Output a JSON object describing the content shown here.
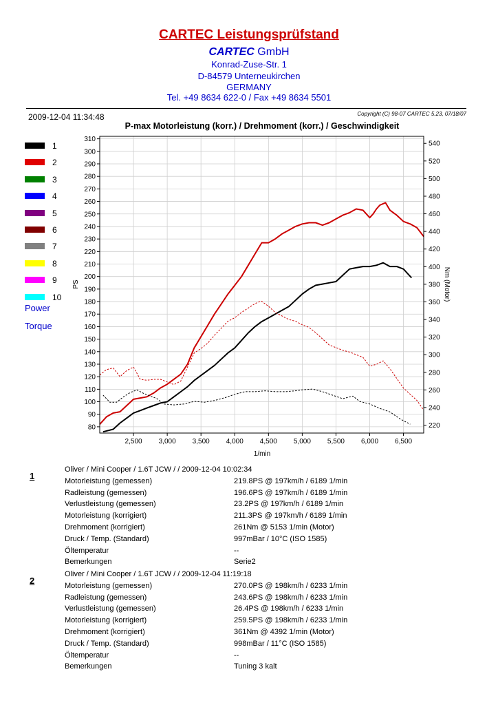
{
  "header": {
    "title": "CARTEC Leistungsprüfstand",
    "company_bold": "CARTEC",
    "company_rest": "GmbH",
    "street": "Konrad-Zuse-Str. 1",
    "city": "D-84579 Unterneukirchen",
    "country": "GERMANY",
    "tel": "Tel. +49 8634  622-0 / Fax +49 8634 5501"
  },
  "meta": {
    "datetime": "2009-12-04 11:34:48",
    "copyright": "Copyright (C) 98-07 CARTEC 5.23, 07/18/07"
  },
  "legend": {
    "items": [
      {
        "label": "1",
        "color": "#000000"
      },
      {
        "label": "2",
        "color": "#e00000"
      },
      {
        "label": "3",
        "color": "#008000"
      },
      {
        "label": "4",
        "color": "#0000ff"
      },
      {
        "label": "5",
        "color": "#800080"
      },
      {
        "label": "6",
        "color": "#800000"
      },
      {
        "label": "7",
        "color": "#808080"
      },
      {
        "label": "8",
        "color": "#ffff00"
      },
      {
        "label": "9",
        "color": "#ff00ff"
      },
      {
        "label": "10",
        "color": "#00ffff"
      }
    ],
    "power_label": "Power",
    "torque_label": "Torque"
  },
  "chart_data": {
    "type": "line",
    "title": "P-max Motorleistung (korr.) / Drehmoment (korr.) / Geschwindigkeit",
    "xlabel": "1/min",
    "ylabel_left": "PS",
    "ylabel_right": "Nm (Motor)",
    "xlim": [
      2000,
      6800
    ],
    "ylim_left": [
      75,
      312
    ],
    "ylim_right": [
      211,
      548
    ],
    "x_ticks": [
      2500,
      3000,
      3500,
      4000,
      4500,
      5000,
      5500,
      6000,
      6500
    ],
    "x_tick_labels": [
      "2,500",
      "3,000",
      "3,500",
      "4,000",
      "4,500",
      "5,000",
      "5,500",
      "6,000",
      "6,500"
    ],
    "y_left_ticks": [
      80,
      90,
      100,
      110,
      120,
      130,
      140,
      150,
      160,
      170,
      180,
      190,
      200,
      210,
      220,
      230,
      240,
      250,
      260,
      270,
      280,
      290,
      300,
      310
    ],
    "y_right_ticks": [
      220,
      240,
      260,
      280,
      300,
      320,
      340,
      360,
      380,
      400,
      420,
      440,
      460,
      480,
      500,
      520,
      540
    ],
    "grid": true,
    "series": [
      {
        "name": "1",
        "kind": "power",
        "axis": "left",
        "color": "#000000",
        "dashed": false,
        "x": [
          2050,
          2200,
          2300,
          2400,
          2500,
          2600,
          2700,
          2800,
          2900,
          3000,
          3100,
          3200,
          3300,
          3400,
          3500,
          3600,
          3700,
          3800,
          3900,
          4000,
          4100,
          4200,
          4300,
          4400,
          4500,
          4600,
          4700,
          4800,
          4900,
          5000,
          5100,
          5200,
          5300,
          5400,
          5500,
          5600,
          5700,
          5800,
          5900,
          6000,
          6100,
          6200,
          6300,
          6400,
          6500,
          6620
        ],
        "y": [
          76,
          78,
          83,
          87,
          91,
          93,
          95,
          97,
          99,
          100,
          104,
          108,
          112,
          117,
          121,
          125,
          129,
          134,
          139,
          143,
          149,
          155,
          160,
          164,
          167,
          170,
          173,
          176,
          181,
          186,
          190,
          193,
          194,
          195,
          196,
          201,
          206,
          207,
          208,
          208,
          209,
          211,
          208,
          208,
          206,
          199
        ]
      },
      {
        "name": "2",
        "kind": "power",
        "axis": "left",
        "color": "#cc0000",
        "dashed": false,
        "x": [
          2000,
          2100,
          2200,
          2300,
          2400,
          2500,
          2600,
          2700,
          2800,
          2900,
          3000,
          3100,
          3200,
          3300,
          3400,
          3500,
          3600,
          3700,
          3800,
          3900,
          4000,
          4100,
          4200,
          4300,
          4400,
          4500,
          4600,
          4700,
          4800,
          4900,
          5000,
          5100,
          5200,
          5300,
          5400,
          5500,
          5600,
          5700,
          5800,
          5900,
          6000,
          6050,
          6100,
          6150,
          6233,
          6300,
          6400,
          6500,
          6600,
          6700,
          6800
        ],
        "y": [
          82,
          88,
          91,
          92,
          97,
          102,
          103,
          104,
          107,
          111,
          114,
          118,
          122,
          130,
          143,
          152,
          161,
          170,
          178,
          186,
          193,
          200,
          209,
          218,
          227,
          227,
          230,
          234,
          237,
          240,
          242,
          243,
          243,
          241,
          243,
          246,
          249,
          251,
          254,
          253,
          247,
          250,
          254,
          257,
          259,
          253,
          249,
          244,
          242,
          239,
          232
        ]
      },
      {
        "name": "1",
        "kind": "torque",
        "axis": "right",
        "color": "#000000",
        "dashed": true,
        "x": [
          2050,
          2150,
          2250,
          2350,
          2450,
          2550,
          2650,
          2750,
          2850,
          2950,
          3100,
          3250,
          3400,
          3550,
          3700,
          3850,
          4000,
          4150,
          4300,
          4450,
          4600,
          4750,
          4900,
          5000,
          5153,
          5300,
          5450,
          5600,
          5750,
          5850,
          6000,
          6150,
          6300,
          6450,
          6600
        ],
        "y": [
          254,
          246,
          246,
          252,
          257,
          260,
          256,
          253,
          250,
          244,
          243,
          244,
          247,
          246,
          248,
          251,
          255,
          258,
          258,
          259,
          258,
          258,
          259,
          260,
          261,
          258,
          254,
          250,
          253,
          247,
          244,
          239,
          235,
          227,
          221
        ]
      },
      {
        "name": "2",
        "kind": "torque",
        "axis": "right",
        "color": "#cc0000",
        "dashed": true,
        "x": [
          2000,
          2100,
          2200,
          2300,
          2400,
          2500,
          2600,
          2700,
          2800,
          2900,
          3000,
          3100,
          3200,
          3300,
          3400,
          3500,
          3600,
          3700,
          3800,
          3900,
          4000,
          4100,
          4200,
          4300,
          4392,
          4500,
          4600,
          4700,
          4800,
          4900,
          5000,
          5100,
          5200,
          5300,
          5400,
          5500,
          5600,
          5700,
          5800,
          5900,
          6000,
          6100,
          6200,
          6300,
          6400,
          6500,
          6600,
          6700,
          6800
        ],
        "y": [
          277,
          283,
          285,
          275,
          282,
          286,
          272,
          271,
          272,
          272,
          269,
          266,
          270,
          286,
          302,
          307,
          313,
          322,
          330,
          338,
          342,
          348,
          353,
          358,
          361,
          355,
          348,
          344,
          340,
          338,
          334,
          331,
          325,
          318,
          311,
          308,
          305,
          303,
          300,
          297,
          287,
          289,
          293,
          284,
          273,
          262,
          255,
          248,
          237
        ]
      }
    ]
  },
  "reports": [
    {
      "index": "1",
      "header": "Oliver / Mini Cooper / 1.6T JCW /  / 2009-12-04 10:02:34",
      "rows": [
        {
          "k": "Motorleistung (gemessen)",
          "v": "219.8PS @ 197km/h / 6189 1/min"
        },
        {
          "k": "Radleistung (gemessen)",
          "v": "196.6PS @ 197km/h / 6189 1/min"
        },
        {
          "k": "Verlustleistung (gemessen)",
          "v": "23.2PS @ 197km/h / 6189 1/min"
        },
        {
          "k": "Motorleistung (korrigiert)",
          "v": "211.3PS @ 197km/h / 6189 1/min"
        },
        {
          "k": "Drehmoment (korrigiert)",
          "v": "261Nm @ 5153 1/min (Motor)"
        },
        {
          "k": "Druck / Temp. (Standard)",
          "v": "997mBar / 10°C   (ISO 1585)"
        },
        {
          "k": "Öltemperatur",
          "v": "--"
        },
        {
          "k": "Bemerkungen",
          "v": "Serie2"
        }
      ]
    },
    {
      "index": "2",
      "header": "Oliver / Mini Cooper / 1.6T JCW /  / 2009-12-04 11:19:18",
      "rows": [
        {
          "k": "Motorleistung (gemessen)",
          "v": "270.0PS @ 198km/h / 6233 1/min"
        },
        {
          "k": "Radleistung (gemessen)",
          "v": "243.6PS @ 198km/h / 6233 1/min"
        },
        {
          "k": "Verlustleistung (gemessen)",
          "v": "26.4PS @ 198km/h / 6233 1/min"
        },
        {
          "k": "Motorleistung (korrigiert)",
          "v": "259.5PS @ 198km/h / 6233 1/min"
        },
        {
          "k": "Drehmoment (korrigiert)",
          "v": "361Nm @ 4392 1/min (Motor)"
        },
        {
          "k": "Druck / Temp. (Standard)",
          "v": "998mBar / 11°C   (ISO 1585)"
        },
        {
          "k": "Öltemperatur",
          "v": "--"
        },
        {
          "k": "Bemerkungen",
          "v": "Tuning 3 kalt"
        }
      ]
    }
  ]
}
